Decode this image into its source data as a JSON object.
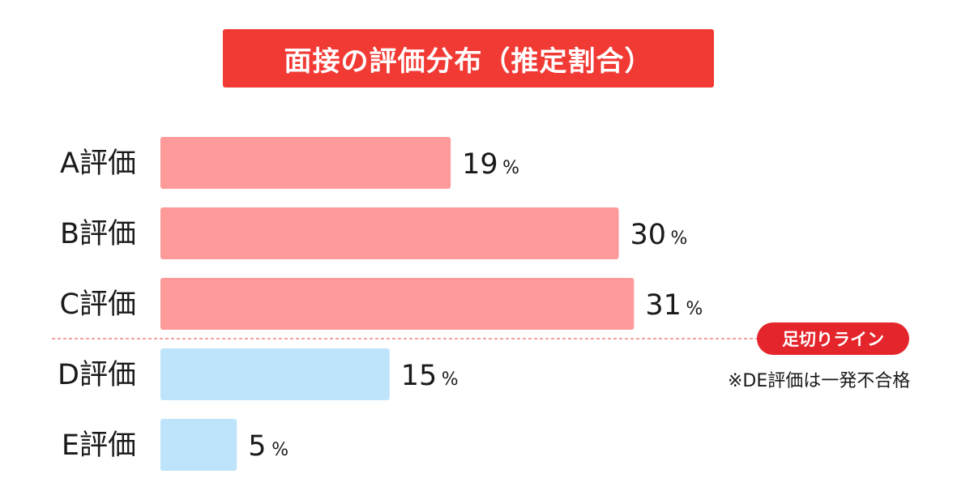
{
  "title": "面接の評価分布（推定割合）",
  "colors": {
    "title_bg": "#f23a35",
    "pass_bar": "#ff9a9a",
    "fail_bar": "#bde4fb",
    "cutoff_line": "#f28080",
    "badge_bg": "#e4252b"
  },
  "chart_data": {
    "type": "bar",
    "orientation": "horizontal",
    "categories": [
      "A評価",
      "B評価",
      "C評価",
      "D評価",
      "E評価"
    ],
    "values": [
      19,
      30,
      31,
      15,
      5
    ],
    "unit": "%",
    "pass_categories": [
      "A評価",
      "B評価",
      "C評価"
    ],
    "fail_categories": [
      "D評価",
      "E評価"
    ],
    "grid": false,
    "legend": "none"
  },
  "cutoff": {
    "label": "足切りライン",
    "note": "※DE評価は一発不合格"
  }
}
